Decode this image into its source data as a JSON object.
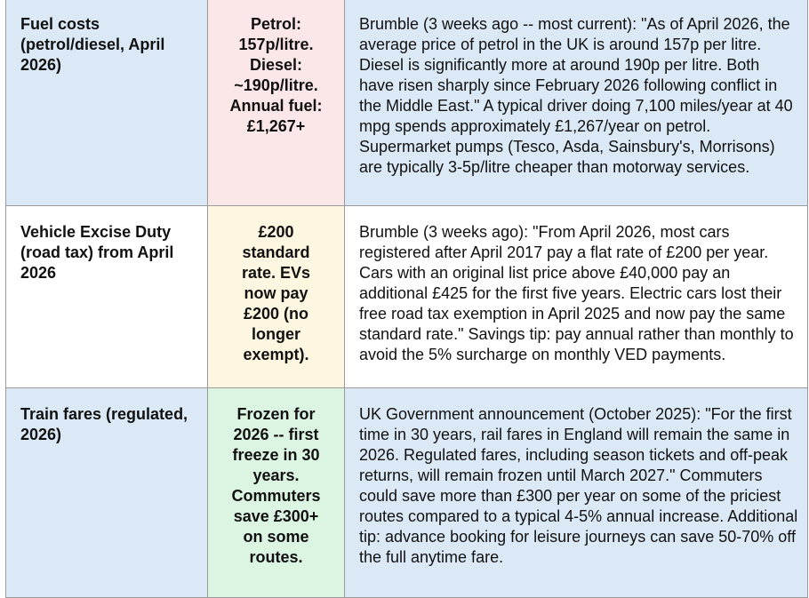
{
  "rows": [
    {
      "topic": "Fuel costs (petrol/diesel, April 2026)",
      "figure_lines": [
        "Petrol:",
        "157p/litre.",
        "Diesel:",
        "~190p/litre.",
        "Annual fuel:",
        "£1,267+"
      ],
      "detail": "Brumble (3 weeks ago -- most current): \"As of April 2026, the average price of petrol in the UK is around 157p per litre. Diesel is significantly more at around 190p per litre. Both have risen sharply since February 2026 following conflict in the Middle East.\" A typical driver doing 7,100 miles/year at 40 mpg spends approximately £1,267/year on petrol. Supermarket pumps (Tesco, Asda, Sainsbury's, Morrisons) are typically 3-5p/litre cheaper than motorway services."
    },
    {
      "topic": "Vehicle Excise Duty (road tax) from April 2026",
      "figure_lines": [
        "£200",
        "standard",
        "rate. EVs",
        "now pay",
        "£200 (no",
        "longer",
        "exempt)."
      ],
      "detail": "Brumble (3 weeks ago): \"From April 2026, most cars registered after April 2017 pay a flat rate of £200 per year. Cars with an original list price above £40,000 pay an additional £425 for the first five years. Electric cars lost their free road tax exemption in April 2025 and now pay the same standard rate.\" Savings tip: pay annual rather than monthly to avoid the 5% surcharge on monthly VED payments."
    },
    {
      "topic": "Train fares (regulated, 2026)",
      "figure_lines": [
        "Frozen for",
        "2026 -- first",
        "freeze in 30",
        "years.",
        "Commuters",
        "save £300+",
        "on some",
        "routes."
      ],
      "detail": "UK Government announcement (October 2025): \"For the first time in 30 years, rail fares in England will remain the same in 2026. Regulated fares, including season tickets and off-peak returns, will remain frozen until March 2027.\" Commuters could save more than £300 per year on some of the priciest routes compared to a typical 4-5% annual increase. Additional tip: advance booking for leisure journeys can save 50-70% off the full anytime fare."
    }
  ],
  "colors": {
    "cell_blue": "#dbe9f7",
    "cell_pink": "#fbe7e7",
    "cell_cream": "#fdf6e0",
    "cell_green": "#dcf4e2",
    "text_red": "#a52a2a",
    "text_olive": "#8b6d00",
    "text_green": "#2e7d32",
    "border": "#9a9a9a"
  }
}
